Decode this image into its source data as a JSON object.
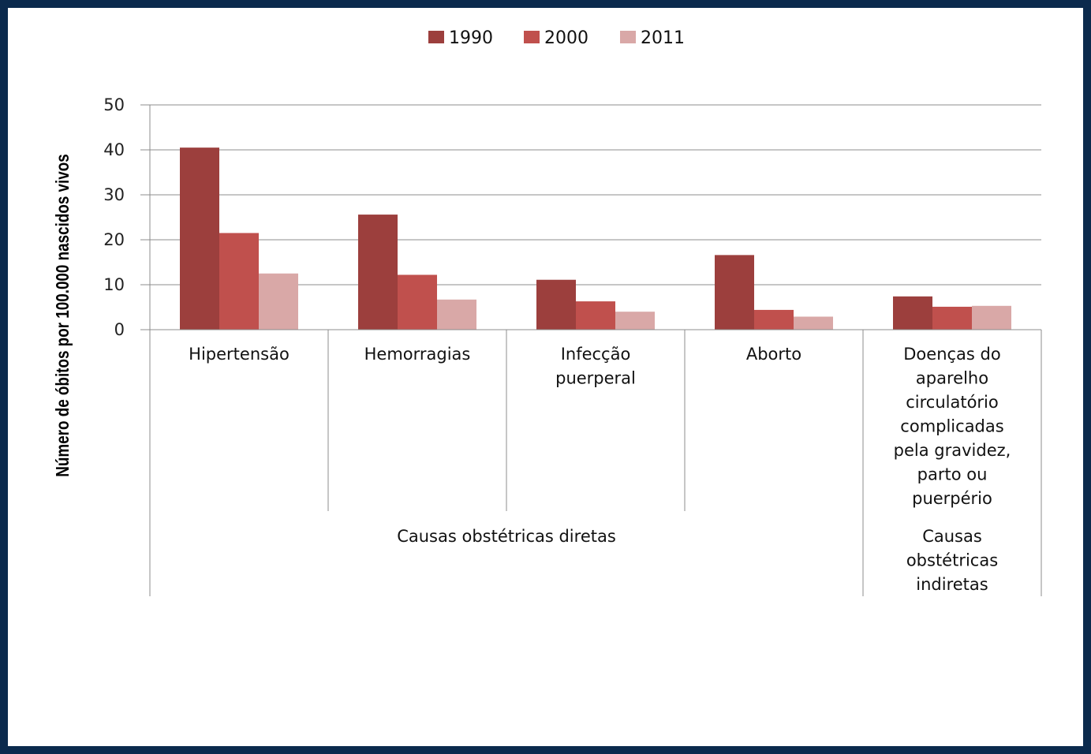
{
  "chart_data": {
    "type": "bar",
    "ylabel": "Número de óbitos por 100.000 nascidos vivos",
    "ylim": [
      0,
      50
    ],
    "yticks": [
      "0",
      "10",
      "20",
      "30",
      "40",
      "50"
    ],
    "grid": true,
    "legend_position": "top-center",
    "categories": [
      [
        "Hipertensão"
      ],
      [
        "Hemorragias"
      ],
      [
        "Infecção",
        "puerperal"
      ],
      [
        "Aborto"
      ],
      [
        "Doenças do",
        "aparelho",
        "circulatório",
        "complicadas",
        "pela gravidez,",
        "parto ou",
        "puerpério"
      ]
    ],
    "groups": [
      {
        "label": [
          "Causas obstétricas diretas"
        ],
        "span": [
          0,
          3
        ]
      },
      {
        "label": [
          "Causas",
          "obstétricas",
          "indiretas"
        ],
        "span": [
          4,
          4
        ]
      }
    ],
    "series": [
      {
        "name": "1990",
        "color": "#9c3f3d",
        "values": [
          40.5,
          25.6,
          11.1,
          16.6,
          7.4
        ]
      },
      {
        "name": "2000",
        "color": "#c0504d",
        "values": [
          21.5,
          12.2,
          6.3,
          4.4,
          5.1
        ]
      },
      {
        "name": "2011",
        "color": "#d9a8a7",
        "values": [
          12.5,
          6.7,
          4.0,
          2.9,
          5.3
        ]
      }
    ]
  }
}
